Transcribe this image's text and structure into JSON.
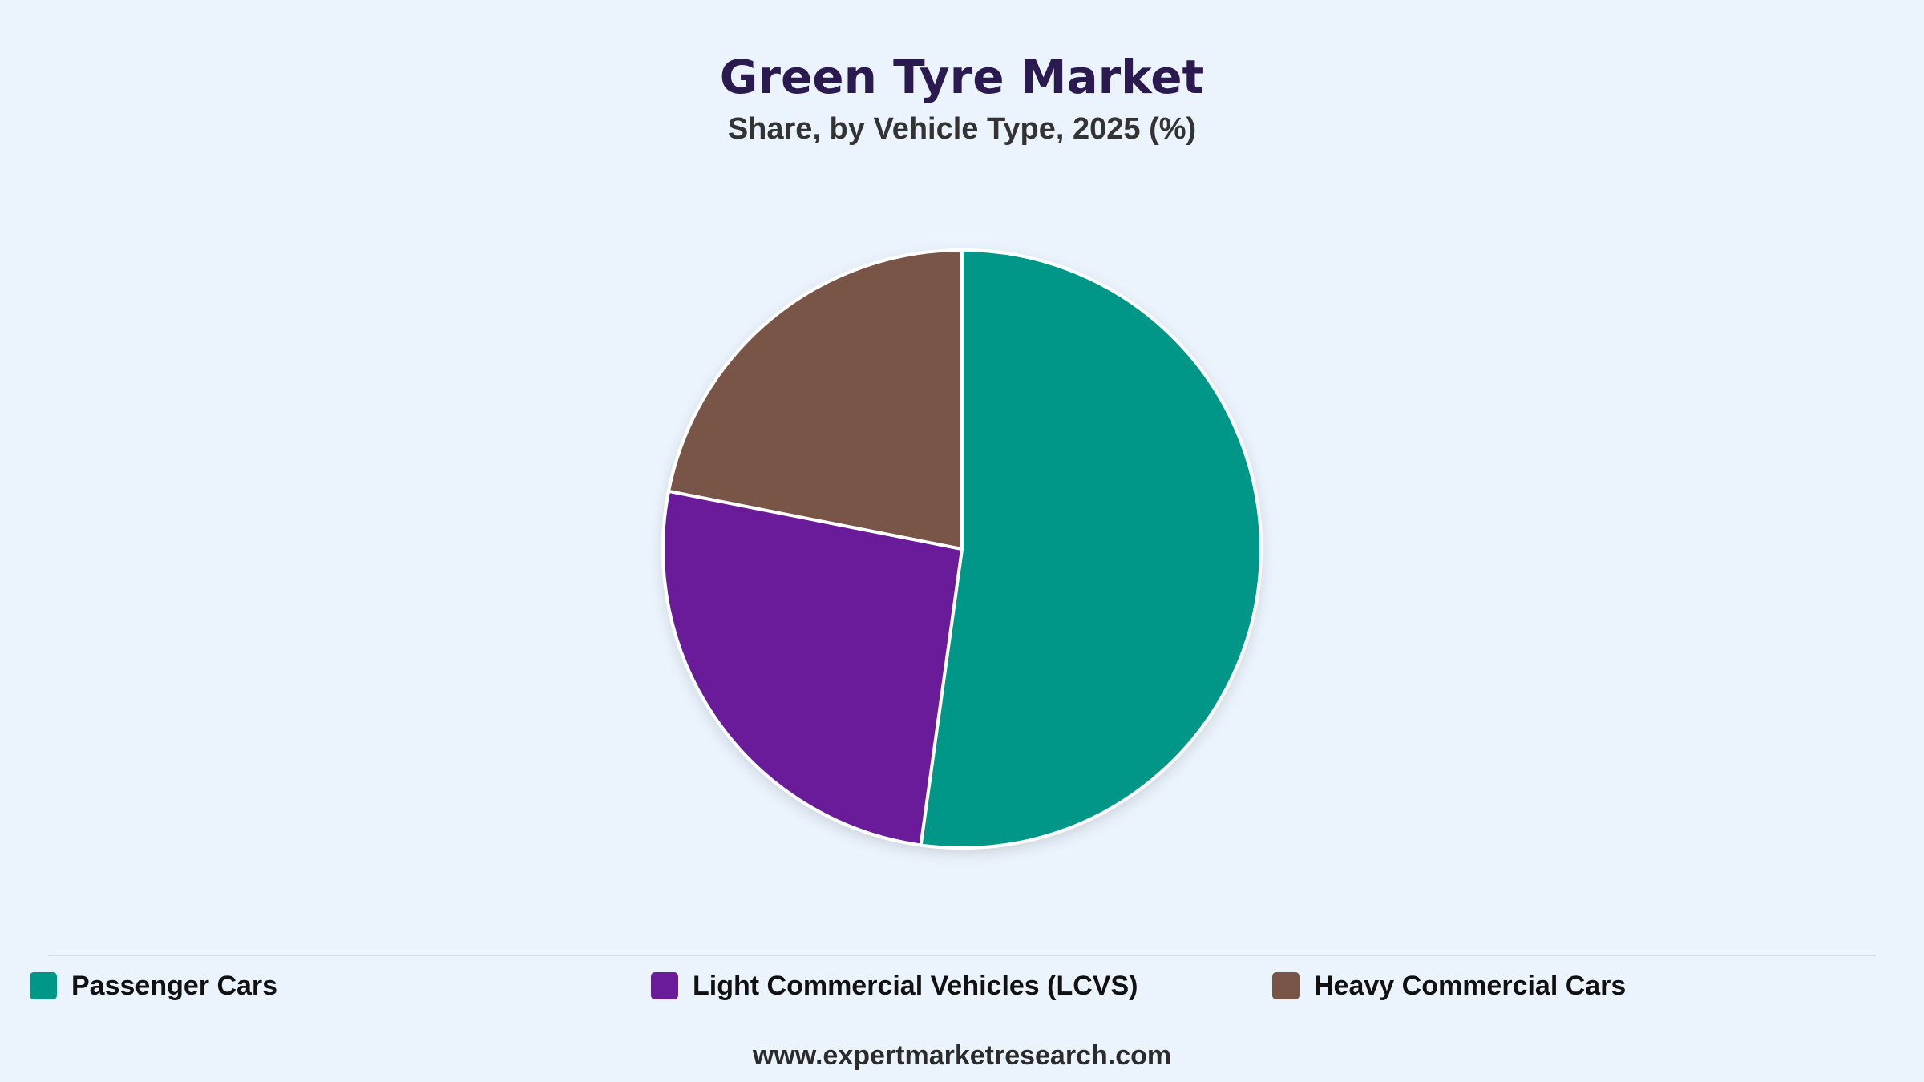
{
  "header": {
    "title": "Green Tyre Market",
    "subtitle": "Share, by Vehicle Type, 2025 (%)"
  },
  "chart_data": {
    "type": "pie",
    "title": "Green Tyre Market",
    "subtitle": "Share, by Vehicle Type, 2025 (%)",
    "categories": [
      "Passenger Cars",
      "Light Commercial Vehicles (LCVS)",
      "Heavy Commercial Cars"
    ],
    "values": [
      52.2,
      25.9,
      21.9
    ],
    "colors": [
      "#009688",
      "#6a1b9a",
      "#795548"
    ],
    "legend_position": "bottom",
    "start_angle": "top",
    "direction": "clockwise"
  },
  "footer": {
    "source": "www.expertmarketresearch.com"
  }
}
